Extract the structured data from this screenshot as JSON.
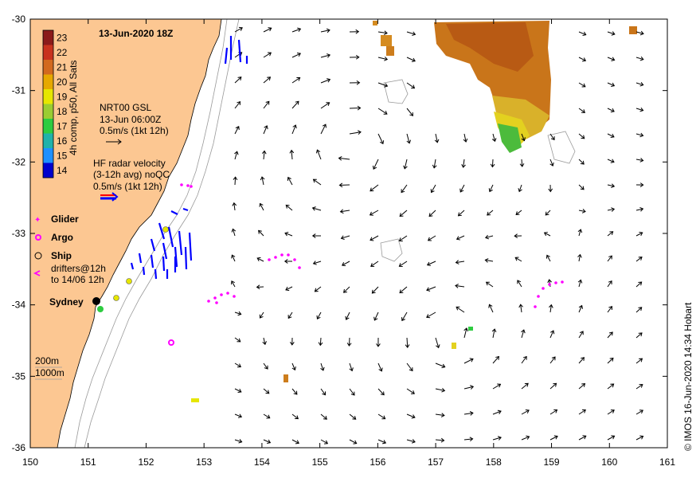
{
  "map": {
    "title": "13-Jun-2020 18Z",
    "credit": "© IMOS 16-Jun-2020 14:34 Hobart",
    "x_ticks": [
      "150",
      "151",
      "152",
      "153",
      "154",
      "155",
      "156",
      "157",
      "158",
      "159",
      "160",
      "161"
    ],
    "y_ticks": [
      "-30",
      "-31",
      "-32",
      "-33",
      "-34",
      "-35",
      "-36"
    ],
    "lon_range": [
      150,
      161
    ],
    "lat_range": [
      -36,
      -30
    ],
    "colorbar": {
      "label": "4h comp, p50, All Sats",
      "ticks": [
        "23",
        "22",
        "21",
        "20",
        "19",
        "18",
        "17",
        "16",
        "15",
        "14"
      ],
      "colors": [
        "#8b1a1a",
        "#c8321e",
        "#d2691e",
        "#e6a800",
        "#e6e600",
        "#9acd32",
        "#2ecc40",
        "#20b2aa",
        "#1e90ff",
        "#0000cd"
      ]
    },
    "gsl": {
      "line1": "NRT00 GSL",
      "line2": "13-Jun 06:00Z",
      "line3": "0.5m/s (1kt 12h)"
    },
    "hf": {
      "line1": "HF radar velocity",
      "line2": "(3-12h avg) noQC",
      "line3": "0.5m/s (1kt 12h)"
    },
    "legend": {
      "glider": "Glider",
      "argo": "Argo",
      "ship": "Ship",
      "drifters1": "drifters@12h",
      "drifters2": "to 14/06 12h"
    },
    "city": "Sydney",
    "depth1": "200m",
    "depth2": "1000m",
    "colors": {
      "land": "#fcc792",
      "arrow": "#000000",
      "hf_blue": "#0000ff",
      "hf_red": "#ff0000",
      "drifter": "#ff00ff",
      "argo": "#ff00ff",
      "sst_warm": "#d2861c"
    }
  }
}
